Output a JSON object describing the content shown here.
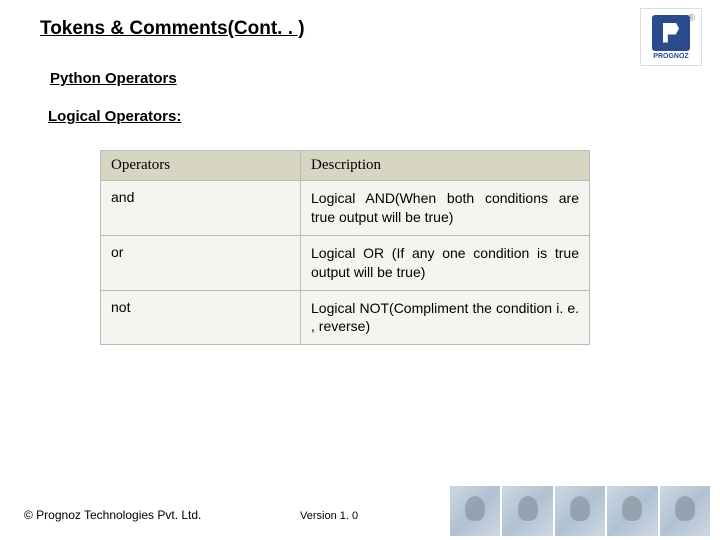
{
  "title": "Tokens & Comments(Cont. . )",
  "subtitle": "Python Operators",
  "section": "Logical Operators:",
  "logo": {
    "text": "PROGNOZ"
  },
  "table": {
    "headers": {
      "col1": "Operators",
      "col2": "Description"
    },
    "rows": [
      {
        "op": "and",
        "desc": "Logical AND(When both conditions are true output will be true)"
      },
      {
        "op": "or",
        "desc": "Logical OR (If any one condition is true output will be true)"
      },
      {
        "op": "not",
        "desc": "Logical NOT(Compliment the condition i. e. , reverse)"
      }
    ]
  },
  "footer": {
    "copyright": "© Prognoz Technologies Pvt. Ltd.",
    "version": "Version 1. 0"
  }
}
